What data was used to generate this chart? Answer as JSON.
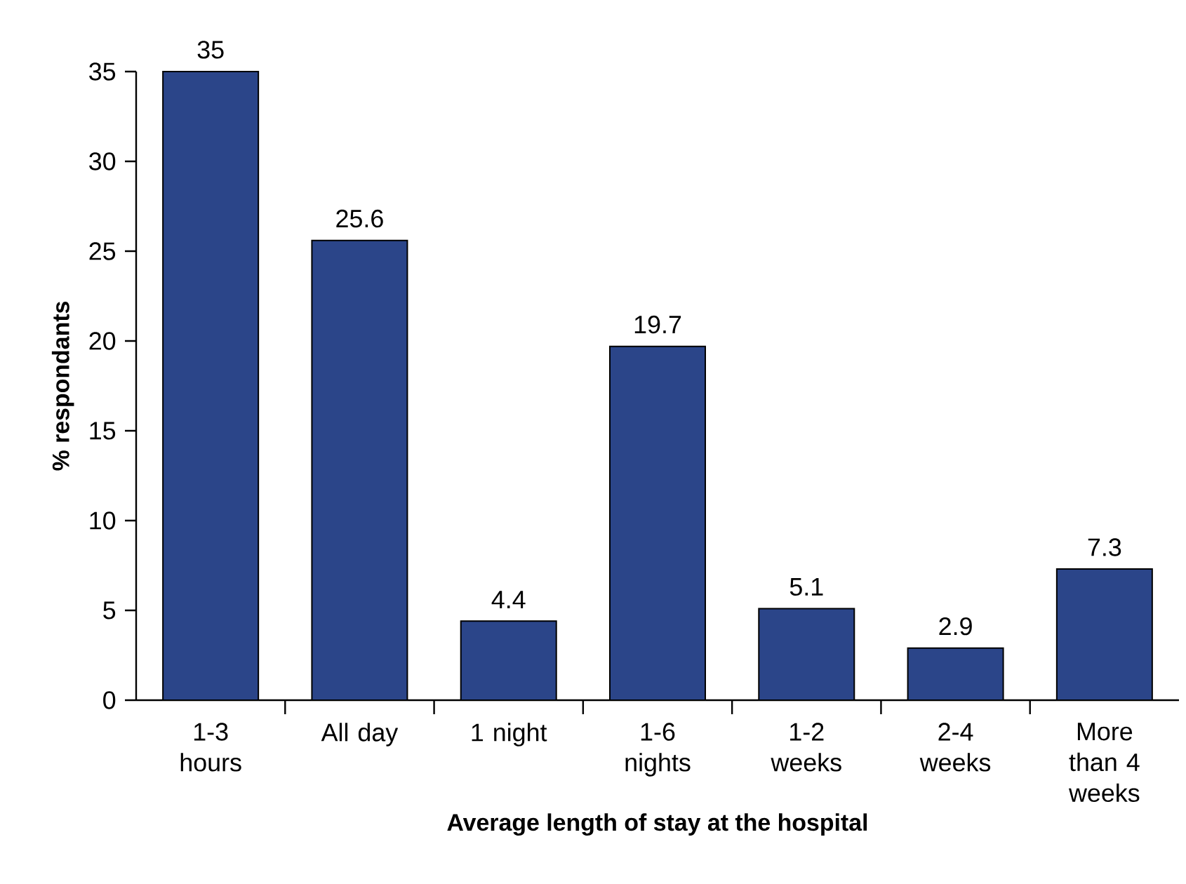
{
  "chart_data": {
    "type": "bar",
    "xlabel": "Average length of stay at the hospital",
    "ylabel": "% respondants",
    "categories": [
      "1-3 hours",
      "All day",
      "1 night",
      "1-6 nights",
      "1-2 weeks",
      "2-4 weeks",
      "More than 4 weeks"
    ],
    "values": [
      35,
      25.6,
      4.4,
      19.7,
      5.1,
      2.9,
      7.3
    ],
    "color": "#2b4589",
    "data_labels": true,
    "ylim": [
      0,
      35
    ],
    "yticks": [
      0,
      5,
      10,
      15,
      20,
      25,
      30,
      35
    ],
    "grid": false
  }
}
